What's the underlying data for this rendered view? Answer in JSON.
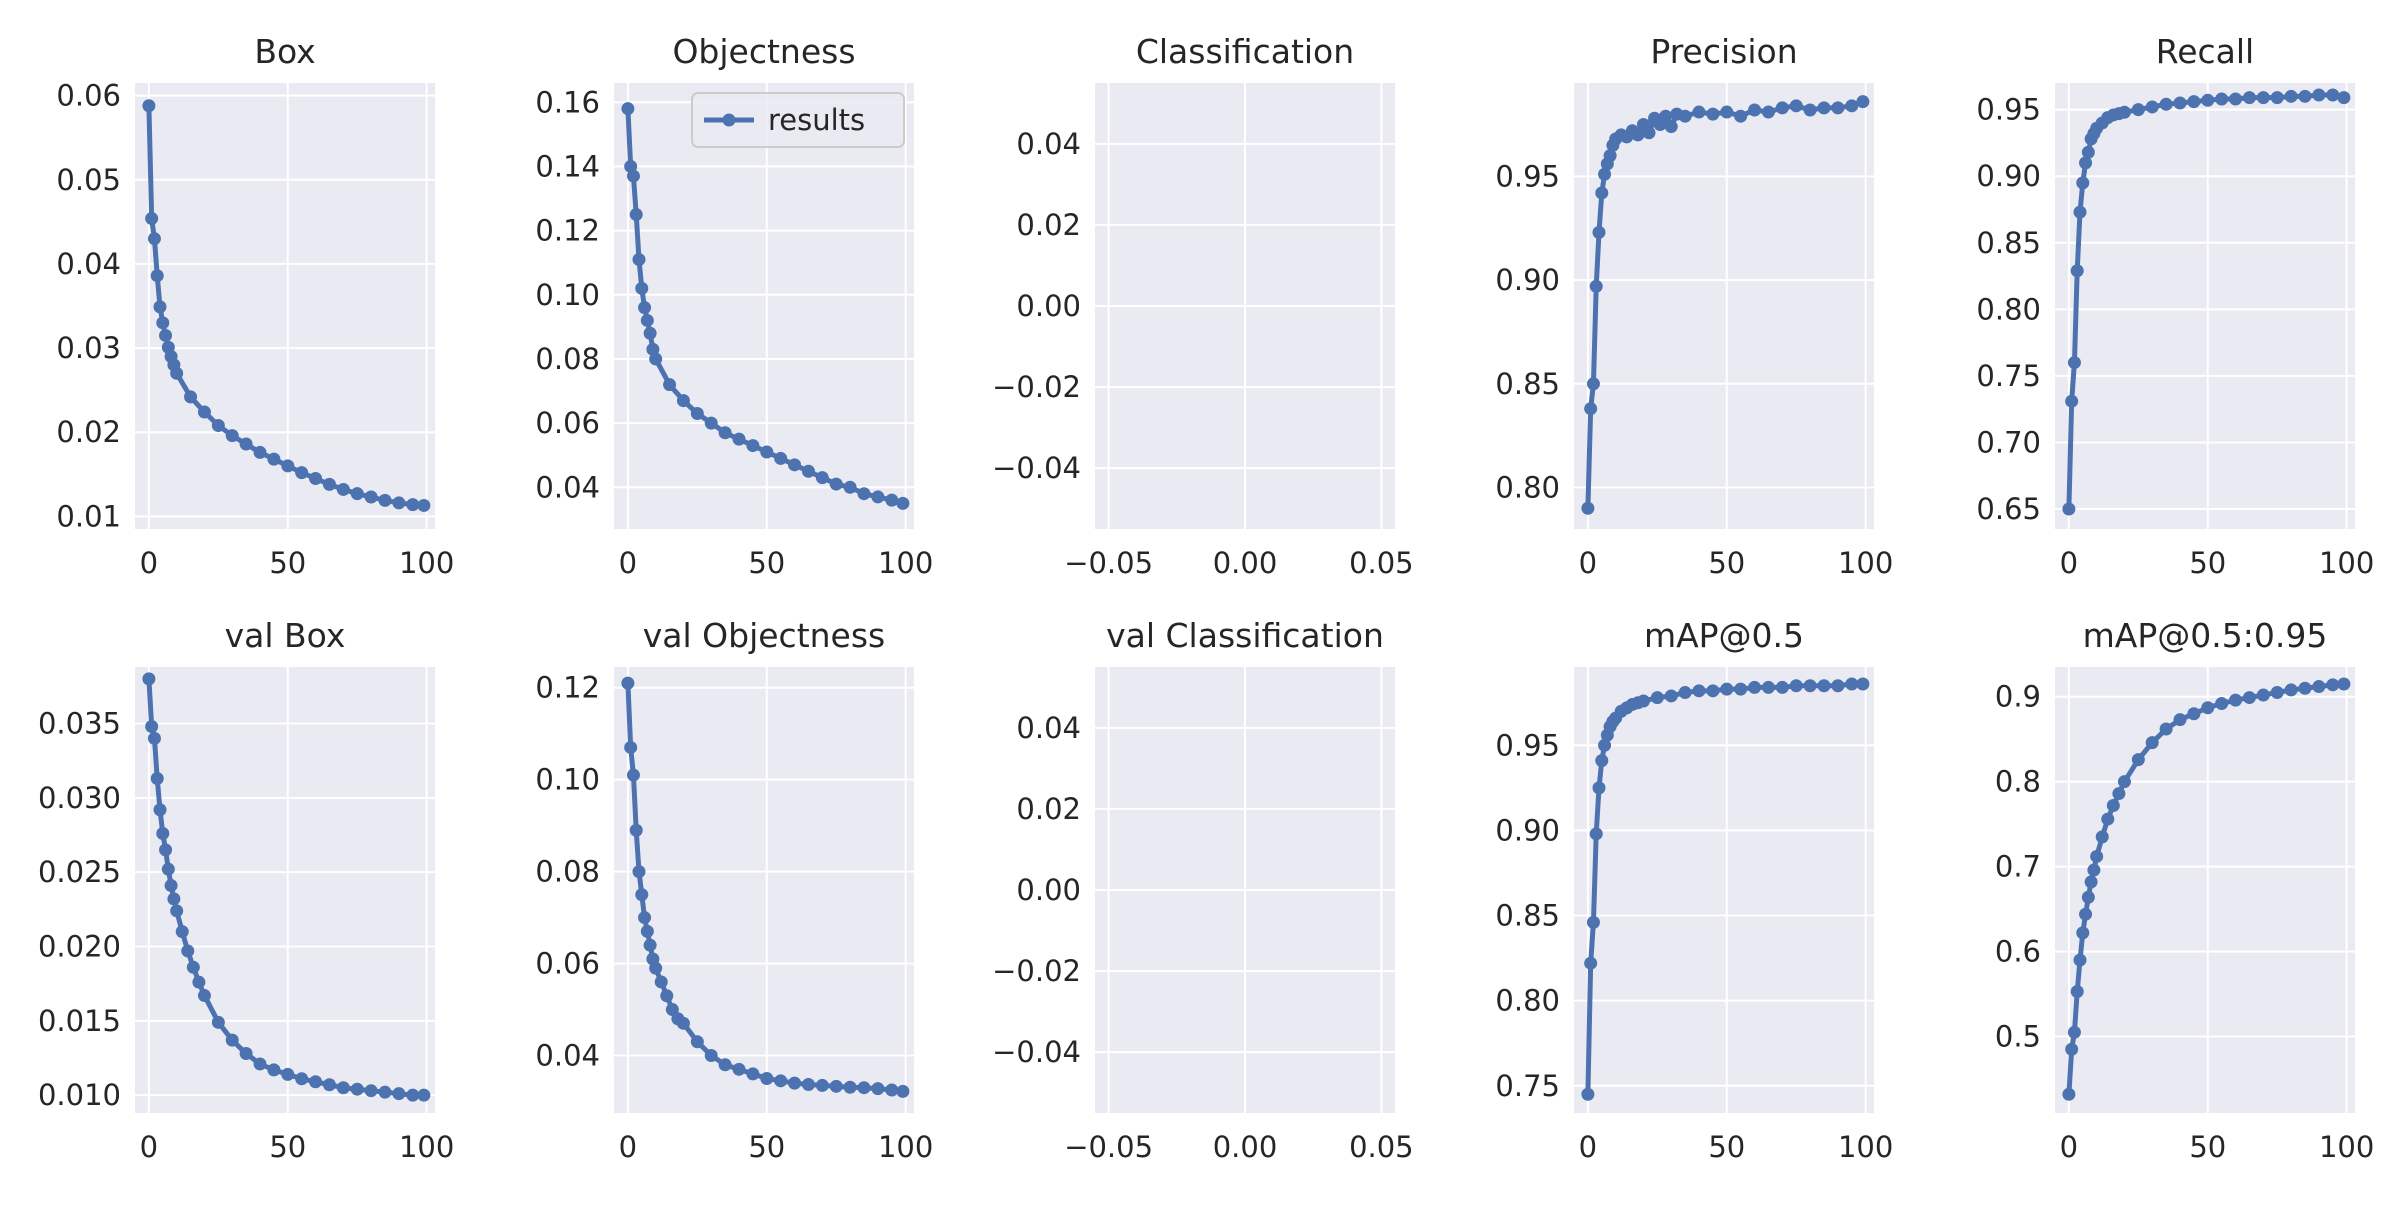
{
  "figure": {
    "background": "#ffffff",
    "panel_color": "#eaeaf2",
    "grid_color": "#ffffff",
    "line_color": "#4c72b0",
    "text_color": "#262626"
  },
  "chart_data": [
    {
      "type": "line",
      "title": "Box",
      "legend": "",
      "xlim": [
        -5,
        103
      ],
      "ylim": [
        0.0085,
        0.0615
      ],
      "xticks": [
        0,
        50,
        100
      ],
      "xtick_labels": [
        "0",
        "50",
        "100"
      ],
      "yticks": [
        0.01,
        0.02,
        0.03,
        0.04,
        0.05,
        0.06
      ],
      "ytick_labels": [
        "0.01",
        "0.02",
        "0.03",
        "0.04",
        "0.05",
        "0.06"
      ],
      "x": [
        0,
        1,
        2,
        3,
        4,
        5,
        6,
        7,
        8,
        9,
        10,
        15,
        20,
        25,
        30,
        35,
        40,
        45,
        50,
        55,
        60,
        65,
        70,
        75,
        80,
        85,
        90,
        95,
        99
      ],
      "series": [
        {
          "name": "results",
          "values": [
            0.0588,
            0.0454,
            0.043,
            0.0386,
            0.0349,
            0.033,
            0.0315,
            0.0301,
            0.029,
            0.028,
            0.027,
            0.0242,
            0.0224,
            0.0208,
            0.0196,
            0.0186,
            0.0176,
            0.0168,
            0.016,
            0.0152,
            0.0145,
            0.0138,
            0.0132,
            0.0127,
            0.0123,
            0.0119,
            0.0116,
            0.0114,
            0.0113
          ]
        }
      ]
    },
    {
      "type": "line",
      "title": "Objectness",
      "legend": "results",
      "legend_position": "top-right",
      "xlim": [
        -5,
        103
      ],
      "ylim": [
        0.027,
        0.166
      ],
      "xticks": [
        0,
        50,
        100
      ],
      "xtick_labels": [
        "0",
        "50",
        "100"
      ],
      "yticks": [
        0.04,
        0.06,
        0.08,
        0.1,
        0.12,
        0.14,
        0.16
      ],
      "ytick_labels": [
        "0.04",
        "0.06",
        "0.08",
        "0.10",
        "0.12",
        "0.14",
        "0.16"
      ],
      "x": [
        0,
        1,
        2,
        3,
        4,
        5,
        6,
        7,
        8,
        9,
        10,
        15,
        20,
        25,
        30,
        35,
        40,
        45,
        50,
        55,
        60,
        65,
        70,
        75,
        80,
        85,
        90,
        95,
        99
      ],
      "series": [
        {
          "name": "results",
          "values": [
            0.158,
            0.14,
            0.137,
            0.125,
            0.111,
            0.102,
            0.096,
            0.092,
            0.088,
            0.083,
            0.08,
            0.072,
            0.067,
            0.063,
            0.06,
            0.057,
            0.055,
            0.053,
            0.051,
            0.049,
            0.047,
            0.045,
            0.043,
            0.041,
            0.04,
            0.038,
            0.037,
            0.036,
            0.035
          ]
        }
      ]
    },
    {
      "type": "line",
      "title": "Classification",
      "legend": "",
      "xlim": [
        -0.055,
        0.055
      ],
      "ylim": [
        -0.055,
        0.055
      ],
      "xticks": [
        -0.05,
        0.0,
        0.05
      ],
      "xtick_labels": [
        "−0.05",
        "0.00",
        "0.05"
      ],
      "yticks": [
        -0.04,
        -0.02,
        0.0,
        0.02,
        0.04
      ],
      "ytick_labels": [
        "−0.04",
        "−0.02",
        "0.00",
        "0.02",
        "0.04"
      ],
      "x": [],
      "series": []
    },
    {
      "type": "line",
      "title": "Precision",
      "legend": "",
      "xlim": [
        -5,
        103
      ],
      "ylim": [
        0.78,
        0.995
      ],
      "xticks": [
        0,
        50,
        100
      ],
      "xtick_labels": [
        "0",
        "50",
        "100"
      ],
      "yticks": [
        0.8,
        0.85,
        0.9,
        0.95
      ],
      "ytick_labels": [
        "0.80",
        "0.85",
        "0.90",
        "0.95"
      ],
      "x": [
        0,
        1,
        2,
        3,
        4,
        5,
        6,
        7,
        8,
        9,
        10,
        12,
        14,
        16,
        18,
        20,
        22,
        24,
        26,
        28,
        30,
        32,
        35,
        40,
        45,
        50,
        55,
        60,
        65,
        70,
        75,
        80,
        85,
        90,
        95,
        99
      ],
      "series": [
        {
          "name": "results",
          "values": [
            0.79,
            0.838,
            0.85,
            0.897,
            0.923,
            0.942,
            0.951,
            0.956,
            0.96,
            0.965,
            0.968,
            0.97,
            0.969,
            0.972,
            0.97,
            0.975,
            0.971,
            0.978,
            0.975,
            0.979,
            0.974,
            0.98,
            0.979,
            0.981,
            0.98,
            0.981,
            0.979,
            0.982,
            0.981,
            0.983,
            0.984,
            0.982,
            0.983,
            0.983,
            0.984,
            0.986
          ]
        }
      ]
    },
    {
      "type": "line",
      "title": "Recall",
      "legend": "",
      "xlim": [
        -5,
        103
      ],
      "ylim": [
        0.635,
        0.97
      ],
      "xticks": [
        0,
        50,
        100
      ],
      "xtick_labels": [
        "0",
        "50",
        "100"
      ],
      "yticks": [
        0.65,
        0.7,
        0.75,
        0.8,
        0.85,
        0.9,
        0.95
      ],
      "ytick_labels": [
        "0.65",
        "0.70",
        "0.75",
        "0.80",
        "0.85",
        "0.90",
        "0.95"
      ],
      "x": [
        0,
        1,
        2,
        3,
        4,
        5,
        6,
        7,
        8,
        9,
        10,
        12,
        14,
        16,
        18,
        20,
        25,
        30,
        35,
        40,
        45,
        50,
        55,
        60,
        65,
        70,
        75,
        80,
        85,
        90,
        95,
        99
      ],
      "series": [
        {
          "name": "results",
          "values": [
            0.65,
            0.731,
            0.76,
            0.829,
            0.873,
            0.895,
            0.91,
            0.918,
            0.928,
            0.932,
            0.936,
            0.94,
            0.944,
            0.946,
            0.947,
            0.948,
            0.95,
            0.952,
            0.954,
            0.955,
            0.956,
            0.957,
            0.958,
            0.958,
            0.959,
            0.959,
            0.959,
            0.96,
            0.96,
            0.961,
            0.961,
            0.959
          ]
        }
      ]
    },
    {
      "type": "line",
      "title": "val Box",
      "legend": "",
      "xlim": [
        -5,
        103
      ],
      "ylim": [
        0.0088,
        0.0388
      ],
      "xticks": [
        0,
        50,
        100
      ],
      "xtick_labels": [
        "0",
        "50",
        "100"
      ],
      "yticks": [
        0.01,
        0.015,
        0.02,
        0.025,
        0.03,
        0.035
      ],
      "ytick_labels": [
        "0.010",
        "0.015",
        "0.020",
        "0.025",
        "0.030",
        "0.035"
      ],
      "x": [
        0,
        1,
        2,
        3,
        4,
        5,
        6,
        7,
        8,
        9,
        10,
        12,
        14,
        16,
        18,
        20,
        25,
        30,
        35,
        40,
        45,
        50,
        55,
        60,
        65,
        70,
        75,
        80,
        85,
        90,
        95,
        99
      ],
      "series": [
        {
          "name": "results",
          "values": [
            0.038,
            0.0348,
            0.034,
            0.0313,
            0.0292,
            0.0276,
            0.0265,
            0.0252,
            0.0241,
            0.0232,
            0.0224,
            0.021,
            0.0197,
            0.0186,
            0.0176,
            0.0167,
            0.0149,
            0.0137,
            0.0128,
            0.0121,
            0.0117,
            0.0114,
            0.0111,
            0.0109,
            0.0107,
            0.0105,
            0.0104,
            0.0103,
            0.0102,
            0.0101,
            0.01,
            0.01
          ]
        }
      ]
    },
    {
      "type": "line",
      "title": "val Objectness",
      "legend": "",
      "xlim": [
        -5,
        103
      ],
      "ylim": [
        0.0275,
        0.1245
      ],
      "xticks": [
        0,
        50,
        100
      ],
      "xtick_labels": [
        "0",
        "50",
        "100"
      ],
      "yticks": [
        0.04,
        0.06,
        0.08,
        0.1,
        0.12
      ],
      "ytick_labels": [
        "0.04",
        "0.06",
        "0.08",
        "0.10",
        "0.12"
      ],
      "x": [
        0,
        1,
        2,
        3,
        4,
        5,
        6,
        7,
        8,
        9,
        10,
        12,
        14,
        16,
        18,
        20,
        25,
        30,
        35,
        40,
        45,
        50,
        55,
        60,
        65,
        70,
        75,
        80,
        85,
        90,
        95,
        99
      ],
      "series": [
        {
          "name": "results",
          "values": [
            0.121,
            0.107,
            0.101,
            0.089,
            0.08,
            0.075,
            0.07,
            0.067,
            0.064,
            0.061,
            0.059,
            0.056,
            0.053,
            0.05,
            0.048,
            0.047,
            0.043,
            0.04,
            0.038,
            0.037,
            0.036,
            0.035,
            0.0345,
            0.034,
            0.0337,
            0.0335,
            0.0333,
            0.0331,
            0.033,
            0.0328,
            0.0325,
            0.0322
          ]
        }
      ]
    },
    {
      "type": "line",
      "title": "val Classification",
      "legend": "",
      "xlim": [
        -0.055,
        0.055
      ],
      "ylim": [
        -0.055,
        0.055
      ],
      "xticks": [
        -0.05,
        0.0,
        0.05
      ],
      "xtick_labels": [
        "−0.05",
        "0.00",
        "0.05"
      ],
      "yticks": [
        -0.04,
        -0.02,
        0.0,
        0.02,
        0.04
      ],
      "ytick_labels": [
        "−0.04",
        "−0.02",
        "0.00",
        "0.02",
        "0.04"
      ],
      "x": [],
      "series": []
    },
    {
      "type": "line",
      "title": "mAP@0.5",
      "legend": "",
      "xlim": [
        -5,
        103
      ],
      "ylim": [
        0.734,
        0.996
      ],
      "xticks": [
        0,
        50,
        100
      ],
      "xtick_labels": [
        "0",
        "50",
        "100"
      ],
      "yticks": [
        0.75,
        0.8,
        0.85,
        0.9,
        0.95
      ],
      "ytick_labels": [
        "0.75",
        "0.80",
        "0.85",
        "0.90",
        "0.95"
      ],
      "x": [
        0,
        1,
        2,
        3,
        4,
        5,
        6,
        7,
        8,
        9,
        10,
        12,
        14,
        16,
        18,
        20,
        25,
        30,
        35,
        40,
        45,
        50,
        55,
        60,
        65,
        70,
        75,
        80,
        85,
        90,
        95,
        99
      ],
      "series": [
        {
          "name": "results",
          "values": [
            0.745,
            0.822,
            0.846,
            0.898,
            0.925,
            0.941,
            0.95,
            0.956,
            0.961,
            0.964,
            0.966,
            0.97,
            0.972,
            0.974,
            0.975,
            0.976,
            0.978,
            0.979,
            0.981,
            0.982,
            0.982,
            0.983,
            0.983,
            0.984,
            0.984,
            0.984,
            0.985,
            0.985,
            0.985,
            0.985,
            0.986,
            0.986
          ]
        }
      ]
    },
    {
      "type": "line",
      "title": "mAP@0.5:0.95",
      "legend": "",
      "xlim": [
        -5,
        103
      ],
      "ylim": [
        0.41,
        0.935
      ],
      "xticks": [
        0,
        50,
        100
      ],
      "xtick_labels": [
        "0",
        "50",
        "100"
      ],
      "yticks": [
        0.5,
        0.6,
        0.7,
        0.8,
        0.9
      ],
      "ytick_labels": [
        "0.5",
        "0.6",
        "0.7",
        "0.8",
        "0.9"
      ],
      "x": [
        0,
        1,
        2,
        3,
        4,
        5,
        6,
        7,
        8,
        9,
        10,
        12,
        14,
        16,
        18,
        20,
        25,
        30,
        35,
        40,
        45,
        50,
        55,
        60,
        65,
        70,
        75,
        80,
        85,
        90,
        95,
        99
      ],
      "series": [
        {
          "name": "results",
          "values": [
            0.432,
            0.485,
            0.505,
            0.553,
            0.59,
            0.622,
            0.644,
            0.664,
            0.682,
            0.696,
            0.712,
            0.735,
            0.756,
            0.772,
            0.786,
            0.8,
            0.826,
            0.846,
            0.862,
            0.873,
            0.88,
            0.887,
            0.892,
            0.896,
            0.899,
            0.902,
            0.905,
            0.908,
            0.91,
            0.912,
            0.914,
            0.915
          ]
        }
      ]
    }
  ]
}
